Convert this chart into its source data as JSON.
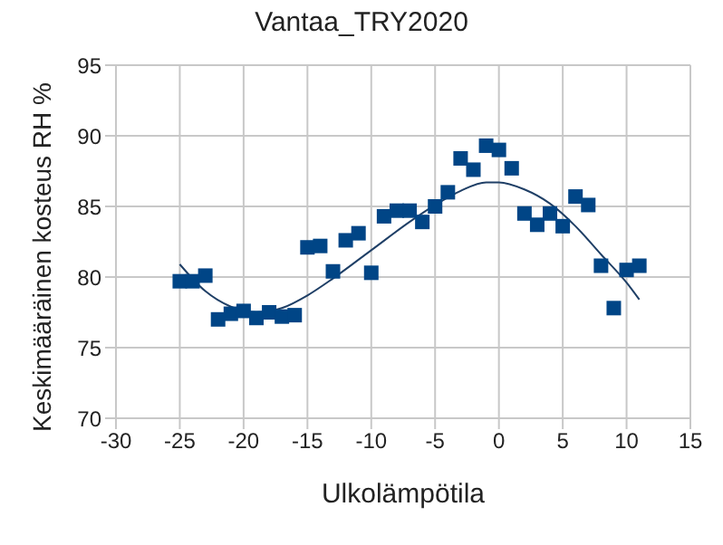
{
  "chart_data": {
    "type": "scatter",
    "title": "Vantaa_TRY2020",
    "xlabel": "Ulkolämpötila",
    "ylabel": "Keskimääräinen kosteus RH %",
    "xlim": [
      -30,
      15
    ],
    "xticks": [
      -30,
      -25,
      -20,
      -15,
      -10,
      -5,
      0,
      5,
      10,
      15
    ],
    "ylim": [
      70,
      95
    ],
    "yticks": [
      70,
      75,
      80,
      85,
      90,
      95
    ],
    "grid": true,
    "series": [
      {
        "marker": "square",
        "color": "#004586",
        "x": [
          -25,
          -24,
          -23,
          -22,
          -21,
          -20,
          -19,
          -18,
          -17,
          -16,
          -15,
          -14,
          -13,
          -12,
          -11,
          -10,
          -9,
          -8,
          -7,
          -6,
          -5,
          -4,
          -3,
          -2,
          -1,
          0,
          1,
          2,
          3,
          4,
          5,
          6,
          7,
          8,
          9,
          10,
          11
        ],
        "values": [
          79.7,
          79.7,
          80.1,
          77.0,
          77.4,
          77.6,
          77.1,
          77.5,
          77.2,
          77.3,
          82.1,
          82.2,
          80.4,
          82.6,
          83.1,
          80.3,
          84.3,
          84.7,
          84.7,
          83.9,
          85.0,
          86.0,
          88.4,
          87.6,
          89.3,
          89.0,
          87.7,
          84.5,
          83.7,
          84.5,
          83.6,
          85.7,
          85.1,
          80.8,
          77.8,
          80.5,
          80.8
        ]
      },
      {
        "type": "line",
        "marker": "none",
        "color": "#1f3f66",
        "x": [
          -25,
          -23,
          -21,
          -19,
          -17,
          -15,
          -13,
          -10,
          -7,
          -5,
          -3,
          -1,
          0,
          2,
          4,
          6,
          8,
          10,
          11
        ],
        "values": [
          80.9,
          79.0,
          77.9,
          77.5,
          77.8,
          78.7,
          79.9,
          81.9,
          83.9,
          85.1,
          86.1,
          86.7,
          86.7,
          86.2,
          85.2,
          83.6,
          81.6,
          79.6,
          78.4
        ]
      }
    ]
  }
}
